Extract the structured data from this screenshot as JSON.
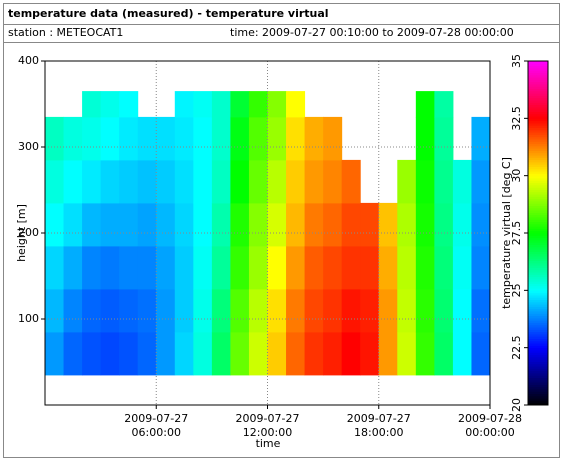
{
  "chart_data": {
    "type": "heatmap",
    "title": "temperature data (measured) - temperature virtual",
    "station": "station : METEOCAT1",
    "time_range": "time: 2009-07-27 00:10:00 to 2009-07-28 00:00:00",
    "x_label": "time",
    "y_label": "height [m]",
    "colorbar_label": "temperature virtual [deg C]",
    "x": [
      0,
      1,
      2,
      3,
      4,
      5,
      6,
      7,
      8,
      9,
      10,
      11,
      12,
      13,
      14,
      15,
      16,
      17,
      18,
      19,
      20,
      21,
      22,
      23,
      24
    ],
    "y": [
      35,
      85,
      135,
      185,
      235,
      285,
      335,
      365
    ],
    "z": [
      [
        24.0,
        24.3,
        24.6,
        25.0,
        25.3,
        25.6,
        null
      ],
      [
        23.5,
        23.8,
        24.2,
        24.7,
        25.0,
        25.3,
        null
      ],
      [
        23.3,
        23.5,
        23.8,
        24.3,
        24.8,
        25.2,
        25.4
      ],
      [
        23.2,
        23.4,
        23.7,
        24.2,
        24.6,
        25.0,
        25.2
      ],
      [
        23.3,
        23.5,
        23.8,
        24.2,
        24.5,
        24.8,
        25.0
      ],
      [
        23.5,
        23.6,
        23.8,
        24.1,
        24.4,
        24.7,
        null
      ],
      [
        24.0,
        24.0,
        24.1,
        24.3,
        24.5,
        24.7,
        null
      ],
      [
        24.6,
        24.5,
        24.5,
        24.6,
        24.7,
        24.8,
        24.9
      ],
      [
        25.3,
        25.2,
        25.1,
        25.0,
        25.0,
        25.0,
        25.1
      ],
      [
        26.5,
        26.3,
        26.0,
        25.8,
        25.6,
        25.5,
        25.5
      ],
      [
        28.5,
        28.3,
        28.0,
        27.8,
        27.5,
        27.3,
        27.0
      ],
      [
        29.5,
        29.3,
        29.0,
        28.8,
        28.5,
        28.3,
        28.0
      ],
      [
        30.5,
        30.3,
        30.0,
        29.6,
        29.3,
        29.0,
        28.8
      ],
      [
        31.5,
        31.3,
        31.0,
        30.7,
        30.5,
        30.3,
        30.0
      ],
      [
        32.0,
        31.8,
        31.6,
        31.3,
        31.0,
        30.8,
        null
      ],
      [
        32.2,
        32.0,
        31.8,
        31.5,
        31.2,
        31.0,
        null
      ],
      [
        32.5,
        32.3,
        32.0,
        31.8,
        31.5,
        null,
        null
      ],
      [
        32.3,
        32.2,
        32.0,
        31.8,
        null,
        null,
        null
      ],
      [
        31.0,
        31.0,
        30.8,
        30.6,
        null,
        null,
        null
      ],
      [
        29.5,
        29.4,
        29.3,
        29.2,
        29.0,
        null,
        null
      ],
      [
        28.0,
        27.9,
        27.8,
        27.7,
        27.6,
        27.5,
        27.5
      ],
      [
        26.5,
        26.4,
        26.3,
        26.2,
        26.1,
        26.0,
        25.9
      ],
      [
        25.0,
        25.0,
        25.1,
        25.2,
        25.3,
        null,
        null
      ],
      [
        23.5,
        23.6,
        23.8,
        23.9,
        24.0,
        24.2,
        null
      ]
    ],
    "xlim": [
      0,
      24
    ],
    "xticks": [
      {
        "value": 6,
        "label": "2009-07-27 06:00:00"
      },
      {
        "value": 12,
        "label": "2009-07-27 12:00:00"
      },
      {
        "value": 18,
        "label": "2009-07-27 18:00:00"
      },
      {
        "value": 24,
        "label": "2009-07-28 00:00:00"
      }
    ],
    "ylim": [
      0,
      400
    ],
    "yticks": [
      100,
      200,
      300,
      400
    ],
    "clim": [
      20,
      35
    ],
    "cticks": [
      20,
      22.5,
      25,
      27.5,
      30,
      32.5,
      35
    ],
    "colormap": [
      "#000000",
      "#0000ff",
      "#00ffff",
      "#00ff00",
      "#ffff00",
      "#ff0000",
      "#ff00ff"
    ],
    "grid": true
  }
}
